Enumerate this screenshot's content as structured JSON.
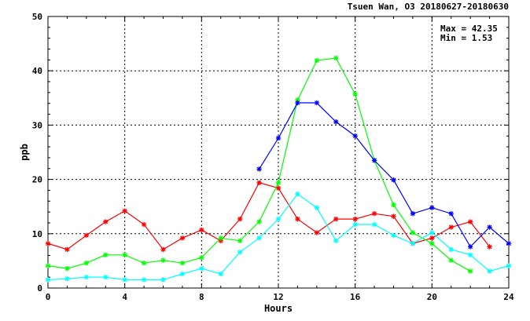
{
  "chart_data": {
    "type": "line",
    "title": "Tsuen Wan, O3 20180627-20180630",
    "xlabel": "Hours",
    "ylabel": "ppb",
    "xlim": [
      0,
      24
    ],
    "ylim": [
      0,
      50
    ],
    "xticks": [
      "0",
      "4",
      "8",
      "12",
      "16",
      "20",
      "24"
    ],
    "yticks": [
      "0",
      "10",
      "20",
      "30",
      "40",
      "50"
    ],
    "grid": true,
    "stats": {
      "max_label": "Max = 42.35",
      "min_label": "Min =  1.53"
    },
    "series": [
      {
        "color": "#ff0000",
        "x": [
          0,
          1,
          2,
          3,
          4,
          5,
          6,
          7,
          8,
          9,
          10,
          11,
          12,
          13,
          14,
          15,
          16,
          17,
          18,
          19,
          20,
          21,
          22,
          23
        ],
        "y": [
          8.2,
          7.1,
          9.7,
          12.2,
          14.2,
          11.7,
          7.1,
          9.2,
          10.7,
          8.7,
          12.7,
          19.4,
          18.4,
          12.7,
          10.2,
          12.7,
          12.7,
          13.7,
          13.2,
          8.2,
          9.2,
          11.2,
          12.2,
          7.6
        ]
      },
      {
        "color": "#00ff00",
        "x": [
          0,
          1,
          2,
          3,
          4,
          5,
          6,
          7,
          8,
          9,
          10,
          11,
          12,
          13,
          14,
          15,
          16,
          17,
          18,
          19,
          20,
          21,
          22
        ],
        "y": [
          4.1,
          3.6,
          4.6,
          6.1,
          6.1,
          4.6,
          5.1,
          4.6,
          5.6,
          9.2,
          8.7,
          12.2,
          19.4,
          34.6,
          41.9,
          42.35,
          35.7,
          23.5,
          15.3,
          10.2,
          8.2,
          5.1,
          3.1
        ]
      },
      {
        "color": "#0000ff",
        "x": [
          11,
          12,
          13,
          14,
          15,
          16,
          17,
          18,
          19,
          20,
          21,
          22,
          23,
          24
        ],
        "y": [
          21.9,
          27.6,
          34.1,
          34.1,
          30.6,
          28.0,
          23.5,
          19.9,
          13.7,
          14.8,
          13.7,
          7.6,
          11.2,
          8.2
        ]
      },
      {
        "color": "#00ffff",
        "x": [
          0,
          1,
          2,
          3,
          4,
          5,
          6,
          7,
          8,
          9,
          10,
          11,
          12,
          13,
          14,
          15,
          16,
          17,
          18,
          19,
          20,
          21,
          22,
          23,
          24
        ],
        "y": [
          1.53,
          1.7,
          2.0,
          2.0,
          1.53,
          1.53,
          1.53,
          2.6,
          3.6,
          2.6,
          6.6,
          9.2,
          12.7,
          17.3,
          14.8,
          8.7,
          11.7,
          11.7,
          9.7,
          8.2,
          10.2,
          7.1,
          6.1,
          3.1,
          4.1
        ]
      }
    ]
  }
}
